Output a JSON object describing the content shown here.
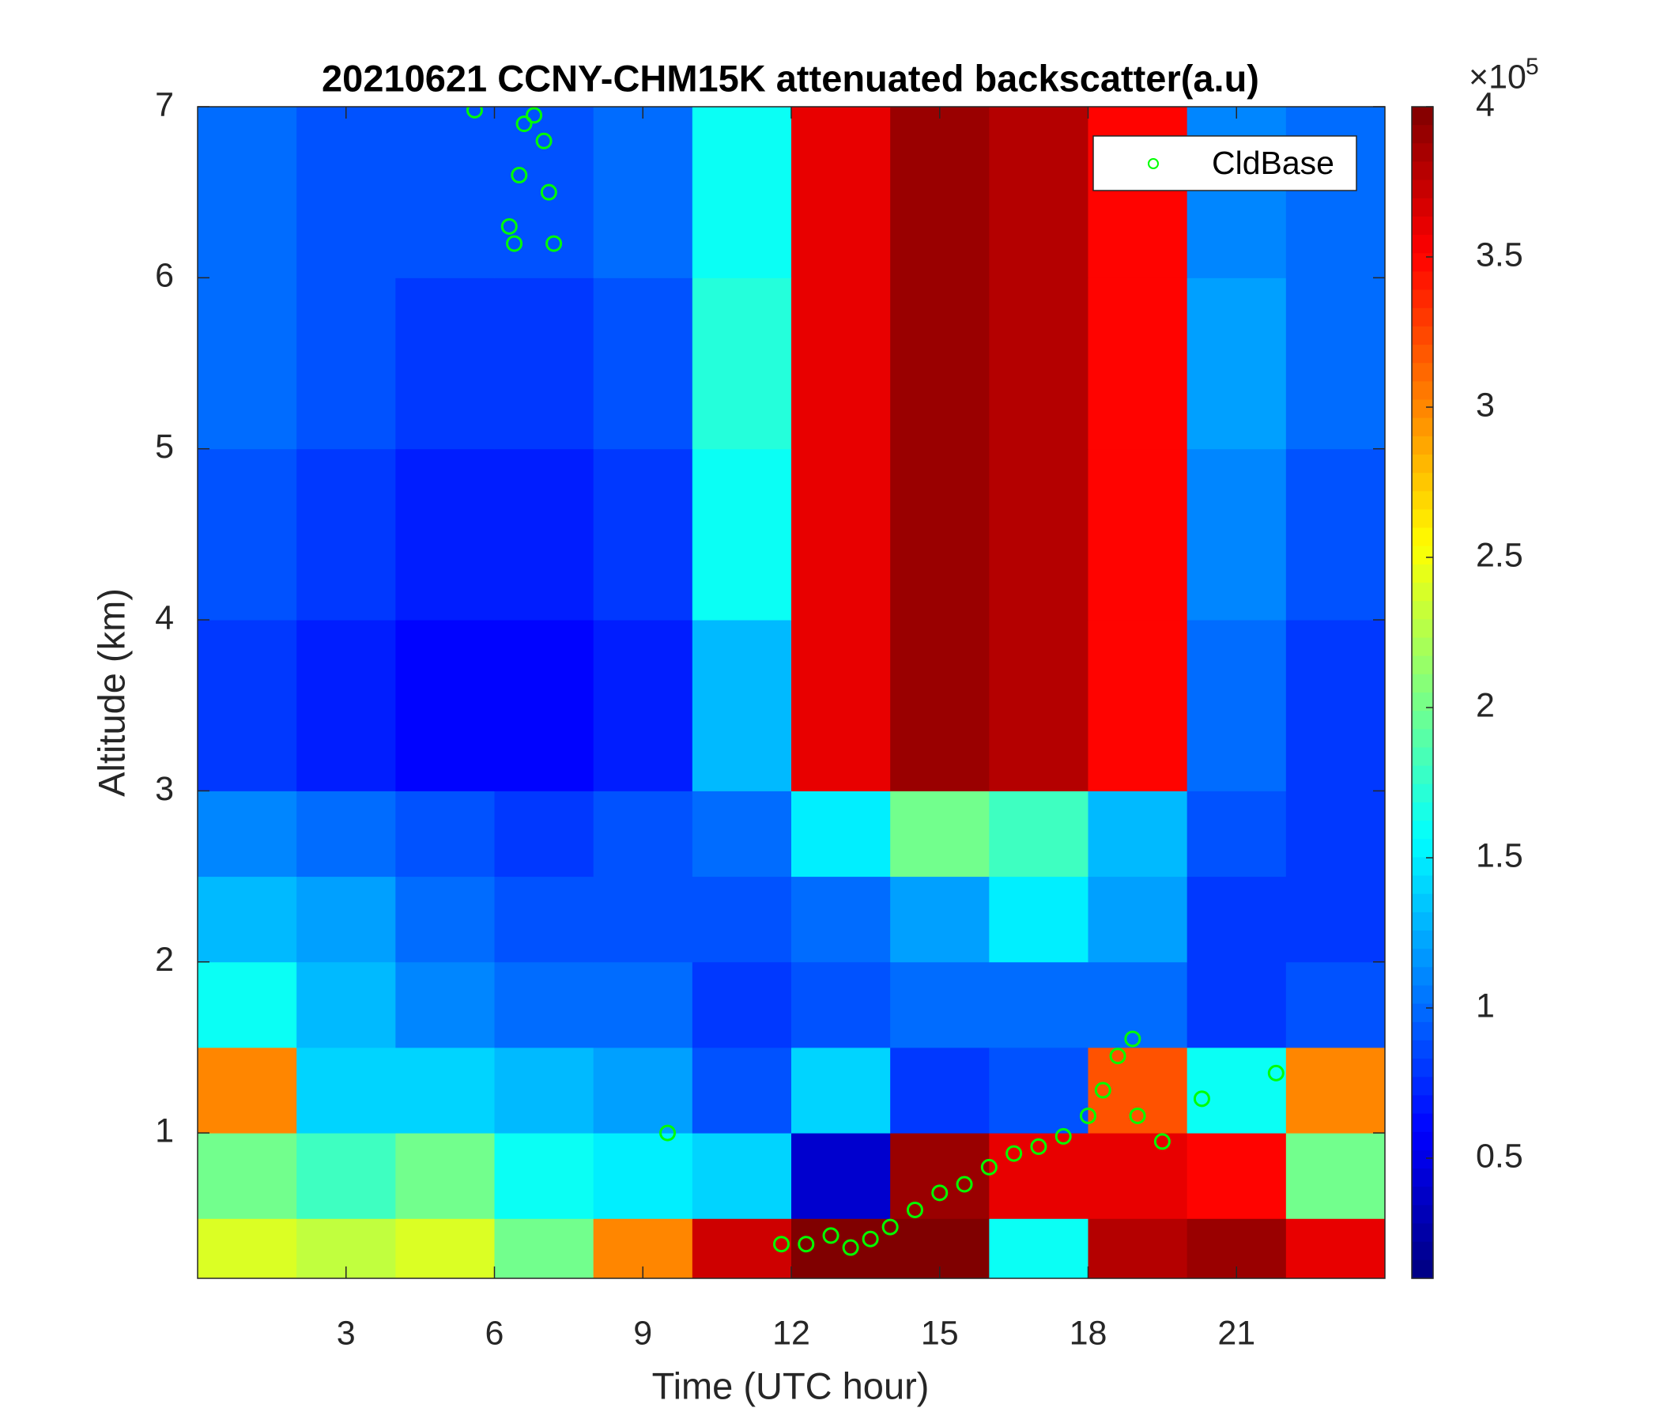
{
  "chart_data": {
    "type": "heatmap",
    "title": "20210621 CCNY-CHM15K attenuated backscatter(a.u)",
    "xlabel": "Time (UTC hour)",
    "ylabel": "Altitude (km)",
    "xlim": [
      0,
      24
    ],
    "ylim": [
      0.15,
      7
    ],
    "xticks": [
      3,
      6,
      9,
      12,
      15,
      18,
      21
    ],
    "yticks": [
      1,
      2,
      3,
      4,
      5,
      6,
      7
    ],
    "colormap": "jet",
    "clim": [
      0.1,
      4
    ],
    "colorbar_ticks": [
      0.5,
      1,
      1.5,
      2,
      2.5,
      3,
      3.5,
      4
    ],
    "colorbar_multiplier": "×10",
    "colorbar_exponent": "5",
    "xbins": [
      0,
      2,
      4,
      6,
      8,
      10,
      12,
      14,
      16,
      18,
      20,
      22,
      24
    ],
    "ybins": [
      0.15,
      0.5,
      1,
      1.5,
      2,
      2.5,
      3,
      4,
      5,
      6,
      7
    ],
    "z": [
      [
        2.4,
        2.3,
        2.4,
        2.0,
        3.0,
        3.7,
        4.0,
        4.0,
        1.6,
        3.8,
        3.9,
        3.6
      ],
      [
        2.0,
        1.8,
        2.0,
        1.6,
        1.5,
        1.4,
        0.4,
        3.9,
        3.6,
        3.6,
        3.5,
        2.0
      ],
      [
        3.0,
        1.4,
        1.4,
        1.3,
        1.2,
        0.9,
        1.4,
        0.8,
        0.9,
        3.2,
        1.6,
        3.0
      ],
      [
        1.6,
        1.3,
        1.1,
        1.0,
        1.0,
        0.8,
        0.9,
        1.0,
        1.0,
        1.0,
        0.8,
        0.9
      ],
      [
        1.3,
        1.2,
        1.0,
        0.9,
        0.9,
        0.9,
        1.0,
        1.2,
        1.5,
        1.2,
        0.8,
        0.8
      ],
      [
        1.1,
        1.0,
        0.9,
        0.8,
        0.9,
        1.0,
        1.5,
        2.0,
        1.8,
        1.3,
        0.9,
        0.8
      ],
      [
        0.8,
        0.7,
        0.6,
        0.6,
        0.7,
        1.3,
        3.6,
        3.9,
        3.8,
        3.5,
        1.0,
        0.8
      ],
      [
        0.9,
        0.8,
        0.7,
        0.7,
        0.8,
        1.6,
        3.6,
        3.9,
        3.8,
        3.5,
        1.1,
        0.9
      ],
      [
        1.0,
        0.9,
        0.8,
        0.8,
        0.9,
        1.7,
        3.6,
        3.9,
        3.8,
        3.5,
        1.2,
        1.0
      ],
      [
        1.0,
        0.9,
        0.9,
        0.9,
        1.0,
        1.6,
        3.6,
        3.9,
        3.8,
        3.5,
        1.1,
        1.0
      ]
    ],
    "scatter": {
      "name": "CldBase",
      "color": "#00ff00",
      "x": [
        5.6,
        6.3,
        6.4,
        6.5,
        6.6,
        6.8,
        7.0,
        7.1,
        7.2,
        9.5,
        11.8,
        12.3,
        12.8,
        13.2,
        13.6,
        14.0,
        14.5,
        15.0,
        15.5,
        16.0,
        16.5,
        17.0,
        17.5,
        18.0,
        18.3,
        18.6,
        18.9,
        19.0,
        19.5,
        20.3,
        21.8
      ],
      "y": [
        6.98,
        6.3,
        6.2,
        6.6,
        6.9,
        6.95,
        6.8,
        6.5,
        6.2,
        1.0,
        0.35,
        0.35,
        0.4,
        0.33,
        0.38,
        0.45,
        0.55,
        0.65,
        0.7,
        0.8,
        0.88,
        0.92,
        0.98,
        1.1,
        1.25,
        1.45,
        1.55,
        1.1,
        0.95,
        1.2,
        1.35
      ]
    },
    "legend": "upper right"
  }
}
